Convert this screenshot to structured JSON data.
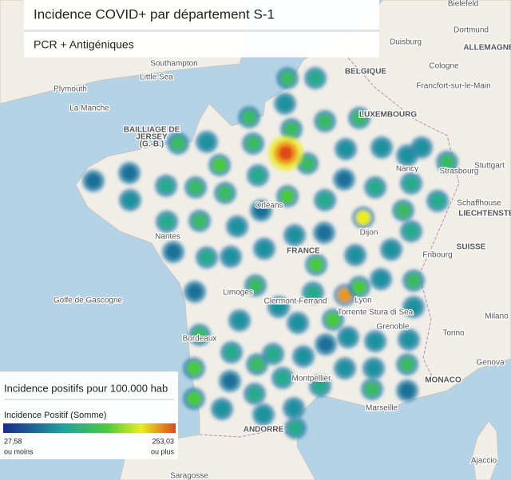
{
  "header": {
    "title": "Incidence COVID+ par département S-1",
    "subtitle": "PCR + Antigéniques"
  },
  "legend": {
    "title": "Incidence positifs pour 100.000 hab",
    "measure": "Incidence Positif (Somme)",
    "min": "27,58",
    "min_note": "ou moins",
    "max": "253,03",
    "max_note": "ou plus"
  },
  "map": {
    "labels": [
      "Plymouth",
      "La Manche",
      "Little Sea",
      "Southampton",
      "BELGIQUE",
      "Cologne",
      "Francfort-sur-le-Main",
      "LUXEMBOURG",
      "ALLEMAGNE",
      "Duisburg",
      "Dortmund",
      "Bielefeld",
      "Stuttgart",
      "Strasbourg",
      "Nancy",
      "Orléans",
      "Nantes",
      "Dijon",
      "FRANCE",
      "SUISSE",
      "Fribourg",
      "Schaffhouse",
      "LIECHTENSTEIN",
      "Golfe de Gascogne",
      "Limoges",
      "Clermont-Ferrand",
      "Lyon",
      "Torrente Stura di Sea",
      "Grenoble",
      "Torino",
      "Milano",
      "Bordeaux",
      "Genova",
      "MONACO",
      "Montpellier",
      "Marseille",
      "ANDORRE",
      "Ajaccio",
      "Saragosse",
      "BAILLIAGE DE",
      "JERSEY",
      "(G.-B.)"
    ]
  }
}
